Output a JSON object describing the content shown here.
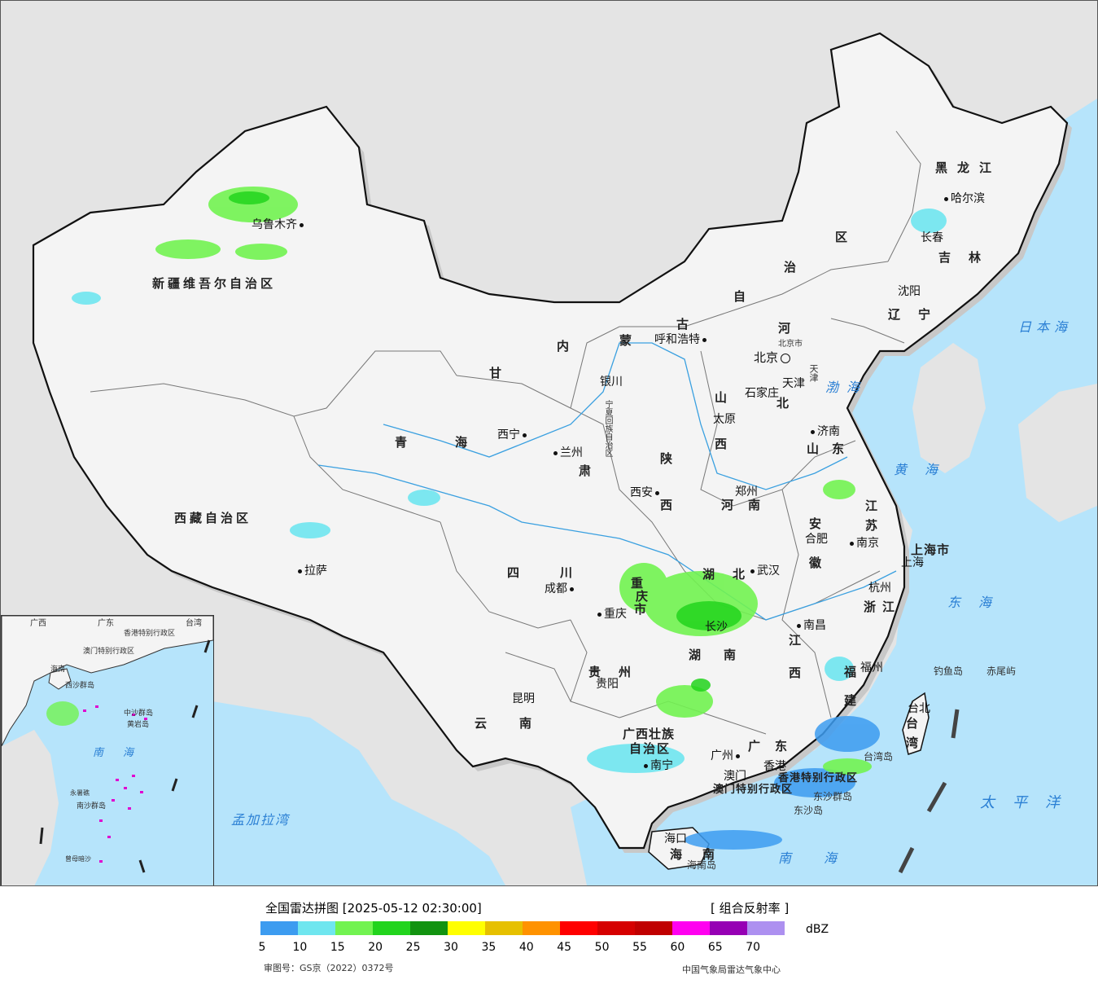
{
  "provinces": [
    {
      "id": "xinjiang",
      "label": "新疆维吾尔自治区"
    },
    {
      "id": "xizang",
      "label": "西藏自治区"
    },
    {
      "id": "qinghai-1",
      "label": "青"
    },
    {
      "id": "qinghai-2",
      "label": "海"
    },
    {
      "id": "gansu-1",
      "label": "甘"
    },
    {
      "id": "gansu-2",
      "label": "肃"
    },
    {
      "id": "neimenggu-1",
      "label": "内"
    },
    {
      "id": "neimenggu-2",
      "label": "蒙"
    },
    {
      "id": "neimenggu-3",
      "label": "古"
    },
    {
      "id": "neimenggu-4",
      "label": "自"
    },
    {
      "id": "neimenggu-5",
      "label": "治"
    },
    {
      "id": "neimenggu-6",
      "label": "区"
    },
    {
      "id": "heilongjiang",
      "label": "黑龙江"
    },
    {
      "id": "jilin",
      "label": "吉林"
    },
    {
      "id": "liaoning",
      "label": "辽宁"
    },
    {
      "id": "hebei-1",
      "label": "河"
    },
    {
      "id": "hebei-2",
      "label": "北"
    },
    {
      "id": "shanxi-1",
      "label": "山"
    },
    {
      "id": "shanxi-2",
      "label": "西"
    },
    {
      "id": "shaanxi-1",
      "label": "陕"
    },
    {
      "id": "shaanxi-2",
      "label": "西"
    },
    {
      "id": "shandong",
      "label": "山东"
    },
    {
      "id": "henan",
      "label": "河南"
    },
    {
      "id": "jiangsu-1",
      "label": "江"
    },
    {
      "id": "jiangsu-2",
      "label": "苏"
    },
    {
      "id": "anhui-1",
      "label": "安"
    },
    {
      "id": "anhui-2",
      "label": "徽"
    },
    {
      "id": "shanghai",
      "label": "上海市"
    },
    {
      "id": "zhejiang",
      "label": "浙江"
    },
    {
      "id": "sichuan",
      "label": "四川"
    },
    {
      "id": "chongqing-1",
      "label": "重"
    },
    {
      "id": "chongqing-2",
      "label": "庆"
    },
    {
      "id": "chongqing-3",
      "label": "市"
    },
    {
      "id": "hubei",
      "label": "湖北"
    },
    {
      "id": "hunan-1",
      "label": "湖"
    },
    {
      "id": "hunan-2",
      "label": "南"
    },
    {
      "id": "jiangxi-1",
      "label": "江"
    },
    {
      "id": "jiangxi-2",
      "label": "西"
    },
    {
      "id": "fujian-1",
      "label": "福"
    },
    {
      "id": "fujian-2",
      "label": "建"
    },
    {
      "id": "guizhou",
      "label": "贵州"
    },
    {
      "id": "yunnan",
      "label": "云南"
    },
    {
      "id": "guangxi-1",
      "label": "广西壮族"
    },
    {
      "id": "guangxi-2",
      "label": "自治区"
    },
    {
      "id": "guangdong",
      "label": "广东"
    },
    {
      "id": "hainan-1",
      "label": "海"
    },
    {
      "id": "hainan-2",
      "label": "南"
    },
    {
      "id": "taiwan-1",
      "label": "台"
    },
    {
      "id": "taiwan-2",
      "label": "湾"
    },
    {
      "id": "ningxia",
      "label": "宁夏回族自治区"
    },
    {
      "id": "tianjin",
      "label": "天津"
    },
    {
      "id": "beijing-city",
      "label": "北京市"
    },
    {
      "id": "hk",
      "label": "香港特别行政区"
    },
    {
      "id": "macau",
      "label": "澳门特别行政区"
    }
  ],
  "cities": [
    {
      "id": "urumqi",
      "label": "乌鲁木齐"
    },
    {
      "id": "lhasa",
      "label": "拉萨"
    },
    {
      "id": "xining",
      "label": "西宁"
    },
    {
      "id": "lanzhou",
      "label": "兰州"
    },
    {
      "id": "yinchuan",
      "label": "银川"
    },
    {
      "id": "hohhot",
      "label": "呼和浩特"
    },
    {
      "id": "beijing",
      "label": "北京"
    },
    {
      "id": "tianjin",
      "label": "天津"
    },
    {
      "id": "shijiazhuang",
      "label": "石家庄"
    },
    {
      "id": "taiyuan",
      "label": "太原"
    },
    {
      "id": "jinan",
      "label": "济南"
    },
    {
      "id": "zhengzhou",
      "label": "郑州"
    },
    {
      "id": "xian",
      "label": "西安"
    },
    {
      "id": "harbin",
      "label": "哈尔滨"
    },
    {
      "id": "changchun",
      "label": "长春"
    },
    {
      "id": "shenyang",
      "label": "沈阳"
    },
    {
      "id": "hefei",
      "label": "合肥"
    },
    {
      "id": "nanjing",
      "label": "南京"
    },
    {
      "id": "shanghai",
      "label": "上海"
    },
    {
      "id": "hangzhou",
      "label": "杭州"
    },
    {
      "id": "wuhan",
      "label": "武汉"
    },
    {
      "id": "chengdu",
      "label": "成都"
    },
    {
      "id": "chongqing",
      "label": "重庆"
    },
    {
      "id": "changsha",
      "label": "长沙"
    },
    {
      "id": "nanchang",
      "label": "南昌"
    },
    {
      "id": "fuzhou",
      "label": "福州"
    },
    {
      "id": "guiyang",
      "label": "贵阳"
    },
    {
      "id": "kunming",
      "label": "昆明"
    },
    {
      "id": "nanning",
      "label": "南宁"
    },
    {
      "id": "guangzhou",
      "label": "广州"
    },
    {
      "id": "hongkong",
      "label": "香港"
    },
    {
      "id": "macau",
      "label": "澳门"
    },
    {
      "id": "haikou",
      "label": "海口"
    },
    {
      "id": "taibei",
      "label": "台北"
    }
  ],
  "seas": [
    {
      "id": "japan-sea",
      "label": "日本海"
    },
    {
      "id": "bohai",
      "label": "渤海"
    },
    {
      "id": "huanghai",
      "label": "黄海"
    },
    {
      "id": "donghai",
      "label": "东海"
    },
    {
      "id": "taipingyang",
      "label": "太平洋"
    },
    {
      "id": "nanhai",
      "label": "南海"
    },
    {
      "id": "bengal",
      "label": "孟加拉湾"
    },
    {
      "id": "inset-nanhai",
      "label": "南海"
    }
  ],
  "islands": [
    {
      "id": "diaoyu",
      "label": "钓鱼岛"
    },
    {
      "id": "chiwei",
      "label": "赤尾屿"
    },
    {
      "id": "taiwan-island",
      "label": "台湾岛"
    },
    {
      "id": "dongsha-qundao",
      "label": "东沙群岛"
    },
    {
      "id": "dongsha-dao",
      "label": "东沙岛"
    },
    {
      "id": "hainan-island",
      "label": "海南岛"
    }
  ],
  "inset_labels": [
    {
      "id": "gd",
      "label": "广东"
    },
    {
      "id": "tw",
      "label": "台湾"
    },
    {
      "id": "gx",
      "label": "广西"
    },
    {
      "id": "hk",
      "label": "香港特别行政区"
    },
    {
      "id": "mo",
      "label": "澳门特别行政区"
    },
    {
      "id": "hn",
      "label": "海南"
    },
    {
      "id": "xisha",
      "label": "西沙群岛"
    },
    {
      "id": "zhongsha",
      "label": "中沙群岛"
    },
    {
      "id": "huangyan",
      "label": "黄岩岛"
    },
    {
      "id": "nansha",
      "label": "南沙群岛"
    },
    {
      "id": "yongshu",
      "label": "永暑礁"
    },
    {
      "id": "zengmu",
      "label": "曾母暗沙"
    }
  ],
  "legend": {
    "title": "全国雷达拼图 [2025-05-12 02:30:00]",
    "product": "[ 组合反射率 ]",
    "unit": "dBZ",
    "ticks": [
      "5",
      "10",
      "15",
      "20",
      "25",
      "30",
      "35",
      "40",
      "45",
      "50",
      "55",
      "60",
      "65",
      "70"
    ],
    "colors": [
      "#3d9cf0",
      "#6fe6ef",
      "#72f351",
      "#22d41d",
      "#129310",
      "#ffff00",
      "#e6c000",
      "#ff9200",
      "#ff0000",
      "#d60000",
      "#c00000",
      "#ff00f0",
      "#9600b4",
      "#ad90f0"
    ],
    "approval": "审图号：GS京（2022）0372号",
    "agency": "中国气象局雷达气象中心"
  }
}
